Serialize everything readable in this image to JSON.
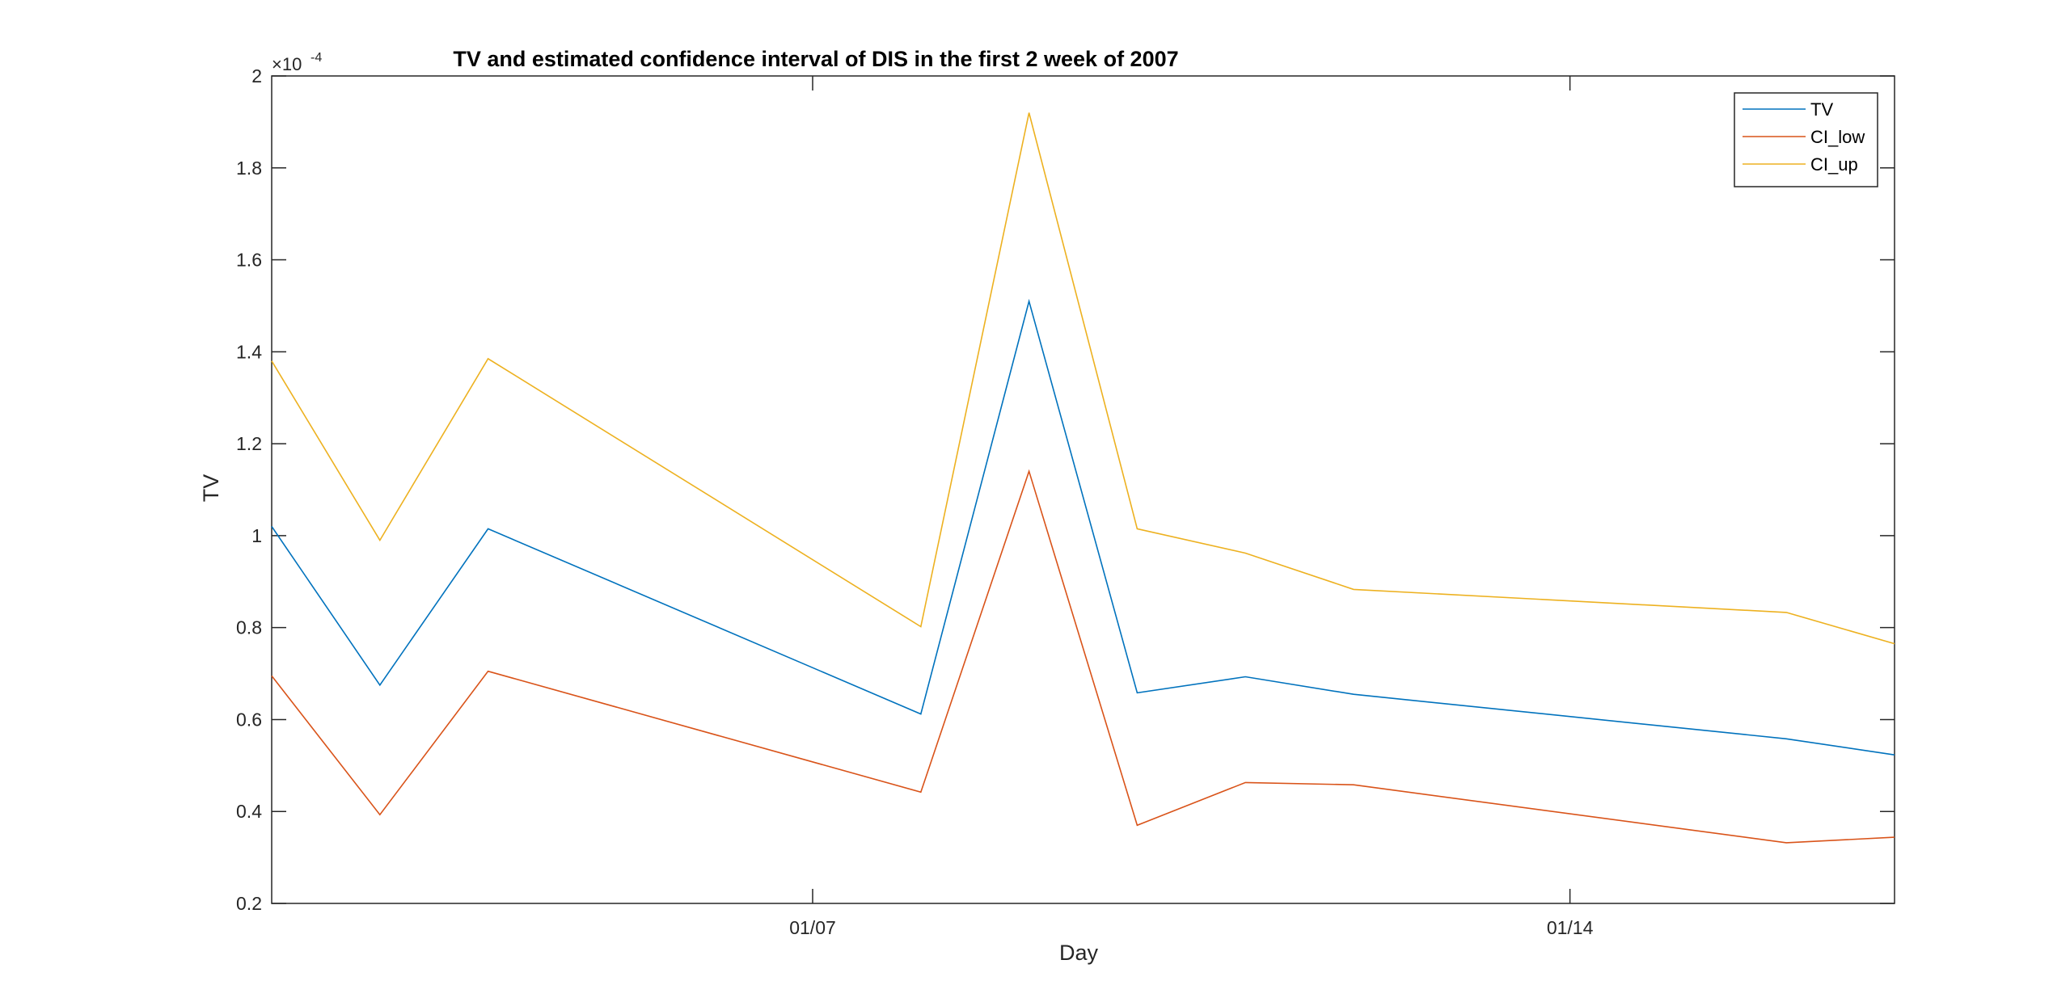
{
  "chart_data": {
    "type": "line",
    "title": "TV and estimated confidence interval of DIS in the first 2 week of 2007",
    "xlabel": "Day",
    "ylabel": "TV",
    "y_multiplier_base": "×10",
    "y_multiplier_exponent": "-4",
    "x": [
      "2007-01-02",
      "2007-01-03",
      "2007-01-04",
      "2007-01-08",
      "2007-01-09",
      "2007-01-10",
      "2007-01-11",
      "2007-01-12",
      "2007-01-16",
      "2007-01-17"
    ],
    "xlim": [
      "2007-01-02",
      "2007-01-17"
    ],
    "xticks": [
      "2007-01-07",
      "2007-01-14"
    ],
    "xtick_labels": [
      "01/07",
      "01/14"
    ],
    "ylim": [
      0.2,
      2.0
    ],
    "yticks": [
      0.2,
      0.4,
      0.6,
      0.8,
      1.0,
      1.2,
      1.4,
      1.6,
      1.8,
      2.0
    ],
    "ytick_labels": [
      "0.2",
      "0.4",
      "0.6",
      "0.8",
      "1",
      "1.2",
      "1.4",
      "1.6",
      "1.8",
      "2"
    ],
    "grid": false,
    "legend_position": "top-right",
    "series": [
      {
        "name": "TV",
        "color": "#0072BD",
        "values": [
          1.02,
          0.675,
          1.015,
          0.612,
          1.51,
          0.658,
          0.693,
          0.655,
          0.558,
          0.523
        ]
      },
      {
        "name": "CI_low",
        "color": "#D95319",
        "values": [
          0.695,
          0.393,
          0.705,
          0.442,
          1.14,
          0.37,
          0.463,
          0.458,
          0.332,
          0.344
        ]
      },
      {
        "name": "CI_up",
        "color": "#EDB120",
        "values": [
          1.38,
          0.99,
          1.385,
          0.802,
          1.92,
          1.015,
          0.962,
          0.883,
          0.833,
          0.765
        ]
      }
    ]
  }
}
